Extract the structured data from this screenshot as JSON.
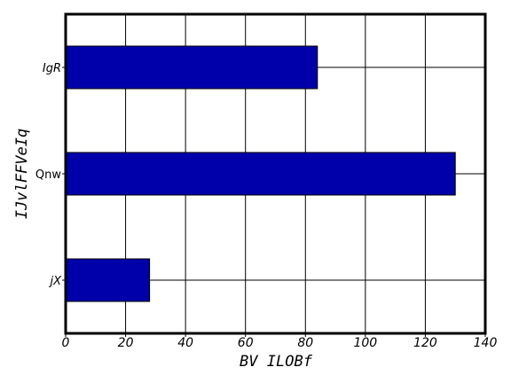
{
  "chart_data": {
    "type": "bar",
    "orientation": "horizontal",
    "categories": [
      "IgR",
      "Qnw",
      "jX"
    ],
    "values": [
      84,
      130,
      28
    ],
    "xlabel": "BV ILOBf",
    "ylabel": "IJvlFFVeIq",
    "xlim": [
      0,
      140
    ],
    "xticks": [
      "0",
      "20",
      "40",
      "60",
      "80",
      "100",
      "120",
      "140"
    ],
    "grid": true,
    "bar_color": "#0000aa",
    "italic_categories": [
      "IgR",
      "jX"
    ]
  }
}
